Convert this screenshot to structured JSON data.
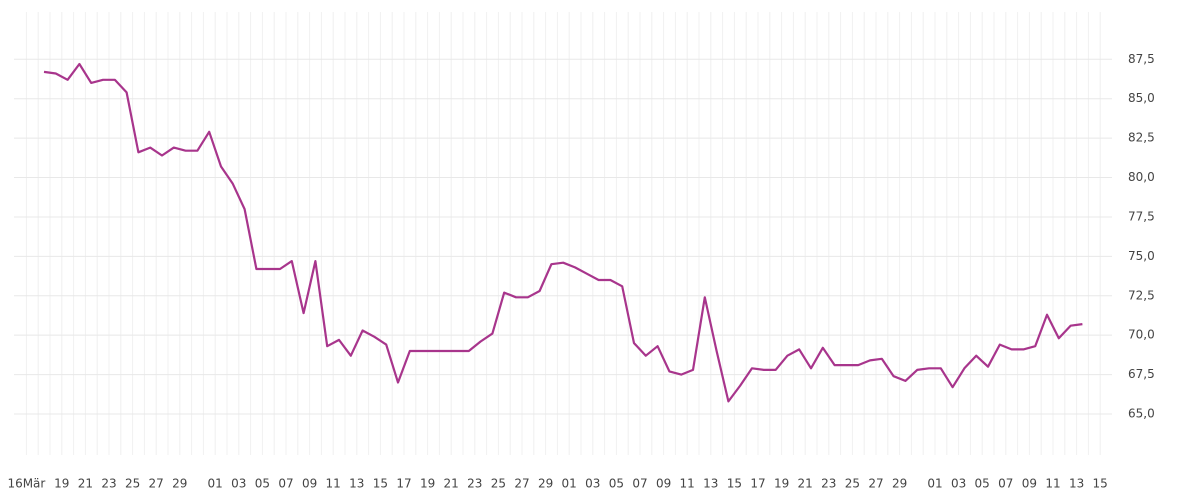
{
  "chart_data": {
    "type": "line",
    "categories": [
      "16Mär",
      null,
      null,
      "19",
      null,
      "21",
      null,
      "23",
      null,
      "25",
      null,
      "27",
      null,
      "29",
      null,
      null,
      "01",
      null,
      "03",
      null,
      "05",
      null,
      "07",
      null,
      "09",
      null,
      "11",
      null,
      "13",
      null,
      "15",
      null,
      "17",
      null,
      "19",
      null,
      "21",
      null,
      "23",
      null,
      "25",
      null,
      "27",
      null,
      "29",
      null,
      "01",
      null,
      "03",
      null,
      "05",
      null,
      "07",
      null,
      "09",
      null,
      "11",
      null,
      "13",
      null,
      "15",
      null,
      "17",
      null,
      "19",
      null,
      "21",
      null,
      "23",
      null,
      "25",
      null,
      "27",
      null,
      "29",
      null,
      null,
      "01",
      null,
      "03",
      null,
      "05",
      null,
      "07",
      null,
      "09",
      null,
      "11",
      null,
      "13",
      null,
      "15"
    ],
    "series": [
      {
        "color": "#a8358c",
        "values": [
          null,
          null,
          86.7,
          86.6,
          86.2,
          87.2,
          86.0,
          86.2,
          86.2,
          85.4,
          81.6,
          81.9,
          81.4,
          81.9,
          81.7,
          81.7,
          82.9,
          80.7,
          79.6,
          78.0,
          74.2,
          74.2,
          74.2,
          74.7,
          71.4,
          74.7,
          69.3,
          69.7,
          68.7,
          70.3,
          69.9,
          69.4,
          67.0,
          69.0,
          69.0,
          69.0,
          69.0,
          69.0,
          69.0,
          69.6,
          70.1,
          72.7,
          72.4,
          72.4,
          72.8,
          74.5,
          74.6,
          74.3,
          73.9,
          73.5,
          73.5,
          73.1,
          69.5,
          68.7,
          69.3,
          67.7,
          67.5,
          67.8,
          72.4,
          69.0,
          65.8,
          66.8,
          67.9,
          67.8,
          67.8,
          68.7,
          69.1,
          67.9,
          69.2,
          68.1,
          68.1,
          68.1,
          68.4,
          68.5,
          67.4,
          67.1,
          67.8,
          67.9,
          67.9,
          66.7,
          67.9,
          68.7,
          68.0,
          69.4,
          69.1,
          69.1,
          69.3,
          71.3,
          69.8,
          70.6,
          70.7,
          null
        ]
      }
    ],
    "ylim": [
      62.4,
      90.5
    ],
    "yticks": [
      {
        "value": 65,
        "label": "65,0"
      },
      {
        "value": 67.5,
        "label": "67,5"
      },
      {
        "value": 70,
        "label": "70,0"
      },
      {
        "value": 72.5,
        "label": "72,5"
      },
      {
        "value": 75,
        "label": "75,0"
      },
      {
        "value": 77.5,
        "label": "77,5"
      },
      {
        "value": 80,
        "label": "80,0"
      },
      {
        "value": 82.5,
        "label": "82,5"
      },
      {
        "value": 85,
        "label": "85,0"
      },
      {
        "value": 87.5,
        "label": "87,5"
      }
    ],
    "grid": true
  }
}
